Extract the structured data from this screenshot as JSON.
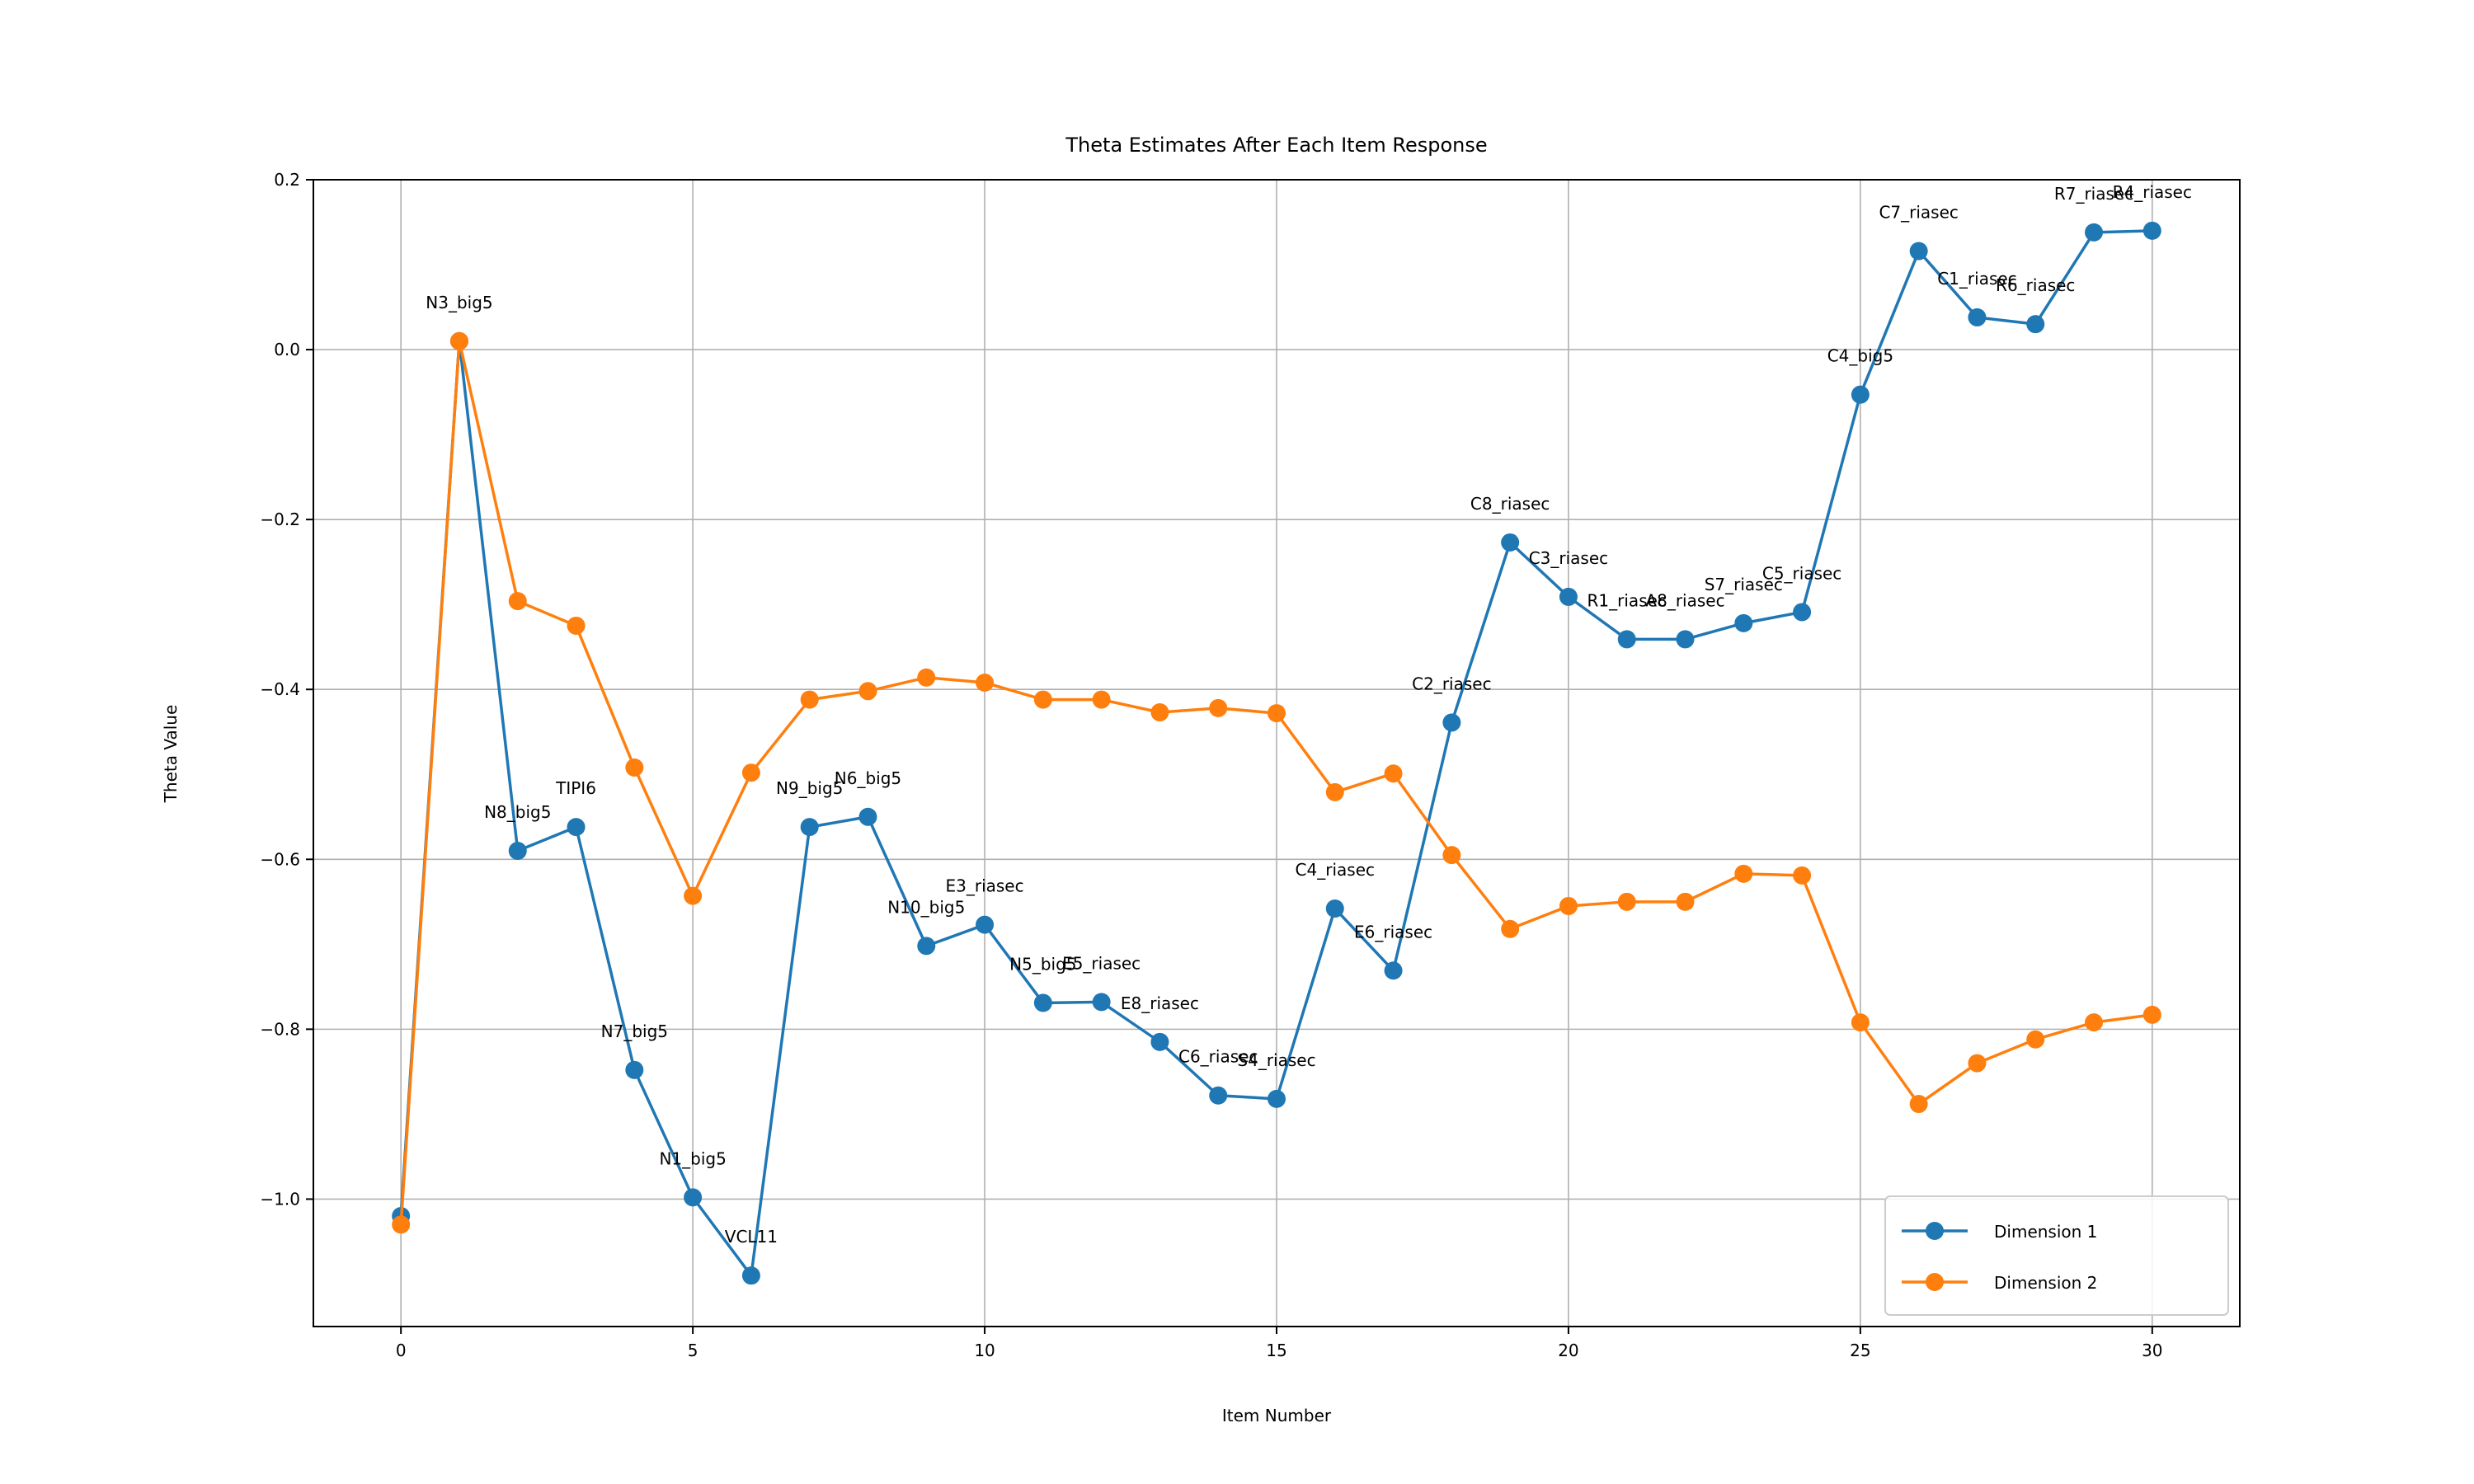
{
  "chart_data": {
    "type": "line",
    "title": "Theta Estimates After Each Item Response",
    "xlabel": "Item Number",
    "ylabel": "Theta Value",
    "xlim": [
      -1.5,
      31.5
    ],
    "ylim": [
      -1.15,
      0.2
    ],
    "xticks": [
      0,
      5,
      10,
      15,
      20,
      25,
      30
    ],
    "xtick_labels": [
      "0",
      "5",
      "10",
      "15",
      "20",
      "25",
      "30"
    ],
    "yticks": [
      0.2,
      0.0,
      -0.2,
      -0.4,
      -0.6,
      -0.8,
      -1.0
    ],
    "ytick_labels": [
      "0.2",
      "0.0",
      "−0.2",
      "−0.4",
      "−0.6",
      "−0.8",
      "−1.0"
    ],
    "grid": true,
    "legend_position": "lower-right",
    "x": [
      0,
      1,
      2,
      3,
      4,
      5,
      6,
      7,
      8,
      9,
      10,
      11,
      12,
      13,
      14,
      15,
      16,
      17,
      18,
      19,
      20,
      21,
      22,
      23,
      24,
      25,
      26,
      27,
      28,
      29,
      30
    ],
    "series": [
      {
        "name": "Dimension 1",
        "color": "#1f77b4",
        "values": [
          -1.02,
          0.01,
          -0.59,
          -0.562,
          -0.848,
          -0.998,
          -1.09,
          -0.562,
          -0.55,
          -0.702,
          -0.677,
          -0.769,
          -0.768,
          -0.815,
          -0.878,
          -0.882,
          -0.658,
          -0.731,
          -0.439,
          -0.227,
          -0.291,
          -0.341,
          -0.341,
          -0.322,
          -0.309,
          -0.053,
          0.116,
          0.038,
          0.03,
          0.138,
          0.14
        ]
      },
      {
        "name": "Dimension 2",
        "color": "#ff7f0e",
        "values": [
          -1.03,
          0.01,
          -0.296,
          -0.325,
          -0.492,
          -0.643,
          -0.498,
          -0.412,
          -0.402,
          -0.386,
          -0.392,
          -0.412,
          -0.412,
          -0.427,
          -0.422,
          -0.428,
          -0.521,
          -0.499,
          -0.595,
          -0.682,
          -0.655,
          -0.65,
          -0.65,
          -0.617,
          -0.619,
          -0.792,
          -0.888,
          -0.84,
          -0.812,
          -0.792,
          -0.783
        ]
      }
    ],
    "annotations": [
      {
        "text": "N3_big5",
        "x": 1,
        "y": 0.01
      },
      {
        "text": "N8_big5",
        "x": 2,
        "y": -0.59
      },
      {
        "text": "TIPI6",
        "x": 3,
        "y": -0.562
      },
      {
        "text": "N7_big5",
        "x": 4,
        "y": -0.848
      },
      {
        "text": "N1_big5",
        "x": 5,
        "y": -0.998
      },
      {
        "text": "VCL11",
        "x": 6,
        "y": -1.09
      },
      {
        "text": "N9_big5",
        "x": 7,
        "y": -0.562
      },
      {
        "text": "N6_big5",
        "x": 8,
        "y": -0.55
      },
      {
        "text": "N10_big5",
        "x": 9,
        "y": -0.702
      },
      {
        "text": "E3_riasec",
        "x": 10,
        "y": -0.677
      },
      {
        "text": "N5_big5",
        "x": 11,
        "y": -0.769
      },
      {
        "text": "E5_riasec",
        "x": 12,
        "y": -0.768
      },
      {
        "text": "E8_riasec",
        "x": 13,
        "y": -0.815
      },
      {
        "text": "C6_riasec",
        "x": 14,
        "y": -0.878
      },
      {
        "text": "S4_riasec",
        "x": 15,
        "y": -0.882
      },
      {
        "text": "C4_riasec",
        "x": 16,
        "y": -0.658
      },
      {
        "text": "E6_riasec",
        "x": 17,
        "y": -0.731
      },
      {
        "text": "C2_riasec",
        "x": 18,
        "y": -0.439
      },
      {
        "text": "C8_riasec",
        "x": 19,
        "y": -0.227
      },
      {
        "text": "C3_riasec",
        "x": 20,
        "y": -0.291
      },
      {
        "text": "R1_riasec",
        "x": 21,
        "y": -0.341
      },
      {
        "text": "A8_riasec",
        "x": 22,
        "y": -0.341
      },
      {
        "text": "S7_riasec",
        "x": 23,
        "y": -0.322
      },
      {
        "text": "C5_riasec",
        "x": 24,
        "y": -0.309
      },
      {
        "text": "C4_big5",
        "x": 25,
        "y": -0.053
      },
      {
        "text": "C7_riasec",
        "x": 26,
        "y": 0.116
      },
      {
        "text": "C1_riasec",
        "x": 27,
        "y": 0.038
      },
      {
        "text": "R6_riasec",
        "x": 28,
        "y": 0.03
      },
      {
        "text": "R7_riasec",
        "x": 29,
        "y": 0.138
      },
      {
        "text": "R4_riasec",
        "x": 30,
        "y": 0.14
      }
    ]
  }
}
